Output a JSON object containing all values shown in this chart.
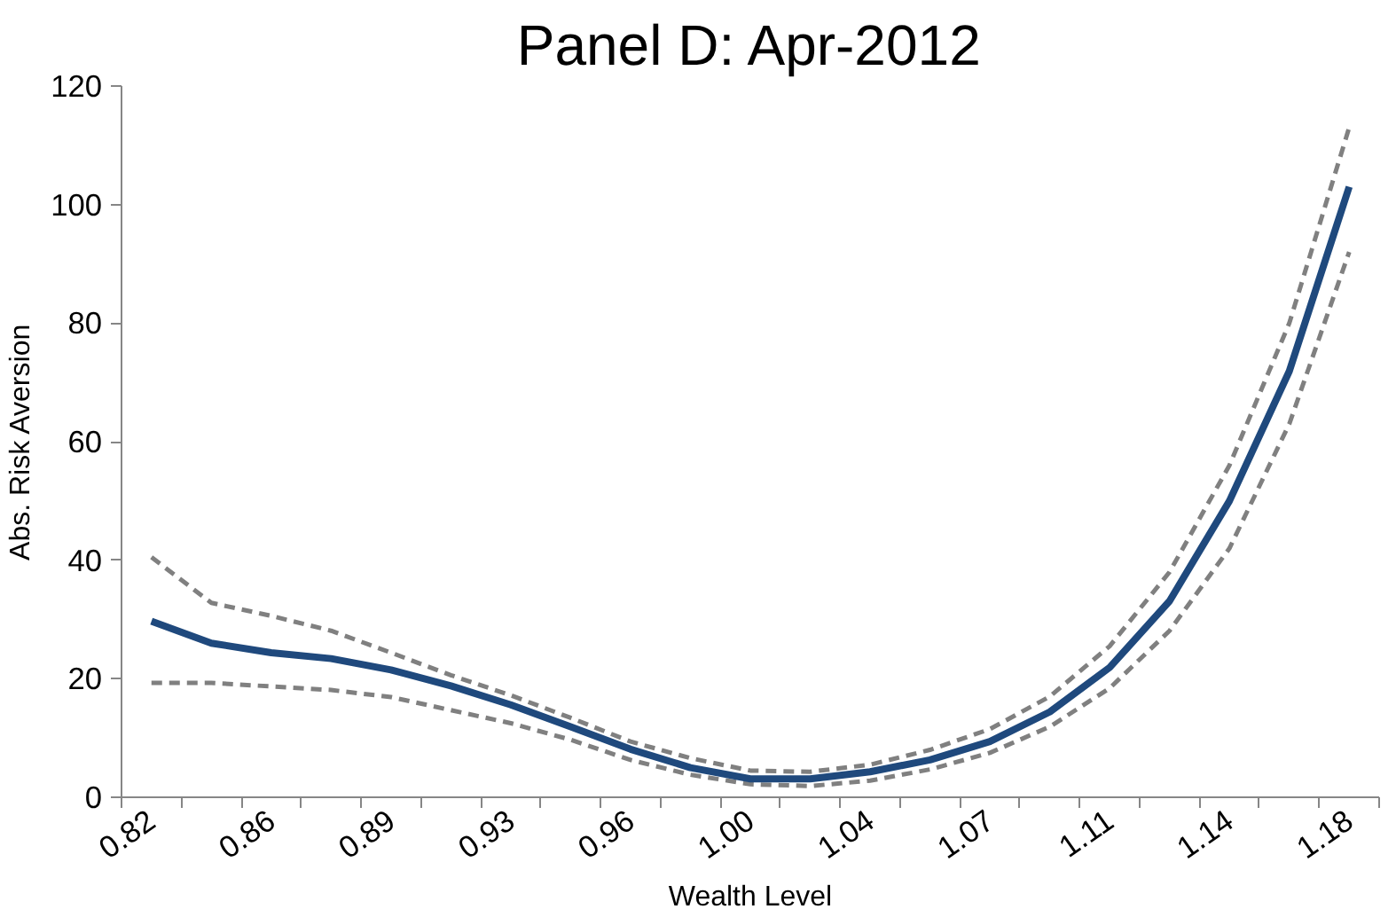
{
  "chart_data": {
    "type": "line",
    "title": "Panel D: Apr-2012",
    "xlabel": "Wealth Level",
    "ylabel": "Abs. Risk Aversion",
    "categories": [
      "0.82",
      null,
      "0.86",
      null,
      "0.89",
      null,
      "0.93",
      null,
      "0.96",
      null,
      "1.00",
      null,
      "1.04",
      null,
      "1.07",
      null,
      "1.11",
      null,
      "1.14",
      null,
      "1.18"
    ],
    "ylim": [
      0,
      120
    ],
    "yticks": [
      0,
      20,
      40,
      60,
      80,
      100,
      120
    ],
    "grid": false,
    "marker": "none",
    "series": [
      {
        "color": "#808080",
        "line_style": "dashed",
        "values": [
          40.5,
          32.8,
          30.6,
          28.1,
          24.4,
          20.6,
          17.2,
          13.4,
          9.4,
          6.6,
          4.5,
          4.3,
          5.5,
          8,
          11.5,
          17,
          25.5,
          38,
          56,
          80,
          113
        ]
      },
      {
        "color": "#808080",
        "line_style": "dashed",
        "values": [
          19.3,
          19.3,
          18.7,
          18.1,
          16.9,
          14.7,
          12.5,
          9.7,
          6.3,
          3.8,
          2.2,
          1.9,
          2.8,
          4.7,
          7.5,
          11.9,
          18.4,
          28.1,
          42,
          63,
          92
        ]
      },
      {
        "color": "#1f497d",
        "line_style": "solid",
        "values": [
          29.7,
          26,
          24.4,
          23.4,
          21.5,
          18.8,
          15.6,
          11.9,
          8.1,
          5,
          3.1,
          3.1,
          4.3,
          6.3,
          9.4,
          14.4,
          21.9,
          33.1,
          50,
          71.9,
          103
        ]
      }
    ]
  }
}
